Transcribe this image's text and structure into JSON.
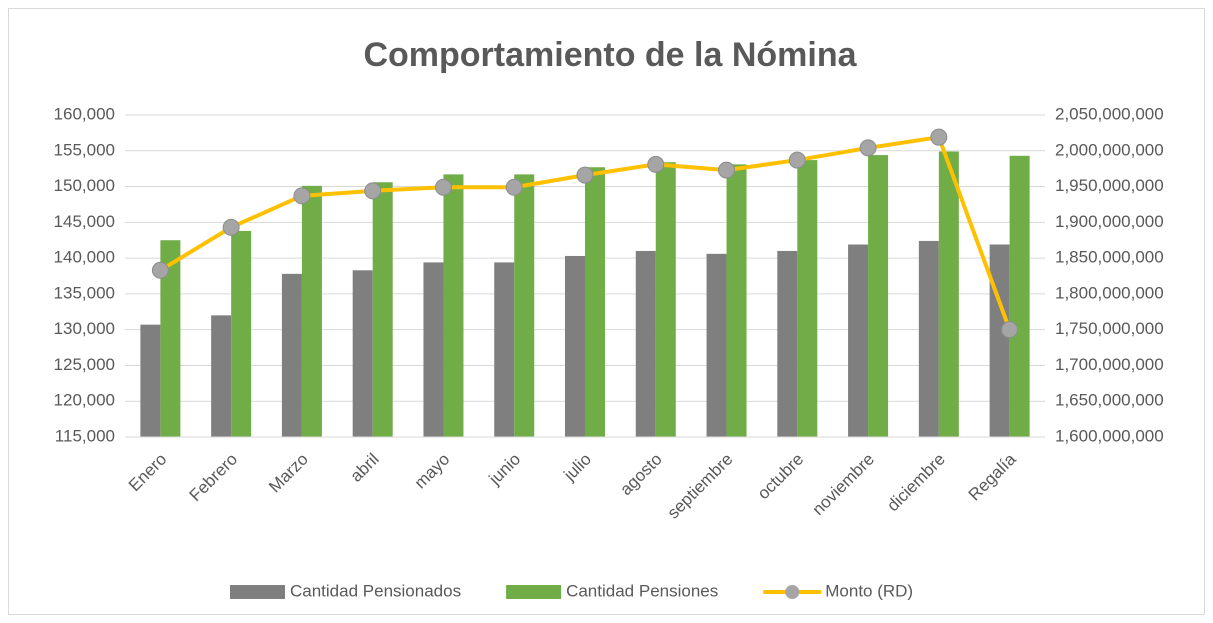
{
  "chart_data": {
    "type": "bar-line",
    "title": "Comportamiento de la Nómina",
    "categories": [
      "Enero",
      "Febrero",
      "Marzo",
      "abril",
      "mayo",
      "junio",
      "julio",
      "agosto",
      "septiembre",
      "octubre",
      "noviembre",
      "diciembre",
      "Regalía"
    ],
    "series": [
      {
        "name": "Cantidad Pensionados",
        "type": "bar",
        "color": "#7f7f7f",
        "values": [
          130700,
          132000,
          137800,
          138300,
          139400,
          139400,
          140300,
          141000,
          140600,
          141000,
          141900,
          142400,
          141900
        ]
      },
      {
        "name": "Cantidad Pensiones",
        "type": "bar",
        "color": "#70ad47",
        "values": [
          142500,
          143800,
          150100,
          150600,
          151700,
          151700,
          152700,
          153400,
          153100,
          153700,
          154400,
          154900,
          154300
        ]
      },
      {
        "name": "Monto (RD)",
        "type": "line",
        "axis": "y2",
        "color": "#ffc000",
        "marker_color": "#a5a5a5",
        "values": [
          1833000000,
          1893000000,
          1937000000,
          1944000000,
          1949000000,
          1949000000,
          1966000000,
          1981000000,
          1973000000,
          1987000000,
          2004000000,
          2019000000,
          1750000000
        ]
      }
    ],
    "ylim": [
      115000,
      160000
    ],
    "yticks": [
      {
        "value": 115000,
        "label": "115,000"
      },
      {
        "value": 120000,
        "label": "120,000"
      },
      {
        "value": 125000,
        "label": "125,000"
      },
      {
        "value": 130000,
        "label": "130,000"
      },
      {
        "value": 135000,
        "label": "135,000"
      },
      {
        "value": 140000,
        "label": "140,000"
      },
      {
        "value": 145000,
        "label": "145,000"
      },
      {
        "value": 150000,
        "label": "150,000"
      },
      {
        "value": 155000,
        "label": "155,000"
      },
      {
        "value": 160000,
        "label": "160,000"
      }
    ],
    "y2lim": [
      1600000000,
      2050000000
    ],
    "y2ticks": [
      {
        "value": 1600000000,
        "label": "1,600,000,000"
      },
      {
        "value": 1650000000,
        "label": "1,650,000,000"
      },
      {
        "value": 1700000000,
        "label": "1,700,000,000"
      },
      {
        "value": 1750000000,
        "label": "1,750,000,000"
      },
      {
        "value": 1800000000,
        "label": "1,800,000,000"
      },
      {
        "value": 1850000000,
        "label": "1,850,000,000"
      },
      {
        "value": 1900000000,
        "label": "1,900,000,000"
      },
      {
        "value": 1950000000,
        "label": "1,950,000,000"
      },
      {
        "value": 2000000000,
        "label": "2,000,000,000"
      },
      {
        "value": 2050000000,
        "label": "2,050,000,000"
      }
    ],
    "grid": true,
    "legend": "bottom"
  }
}
